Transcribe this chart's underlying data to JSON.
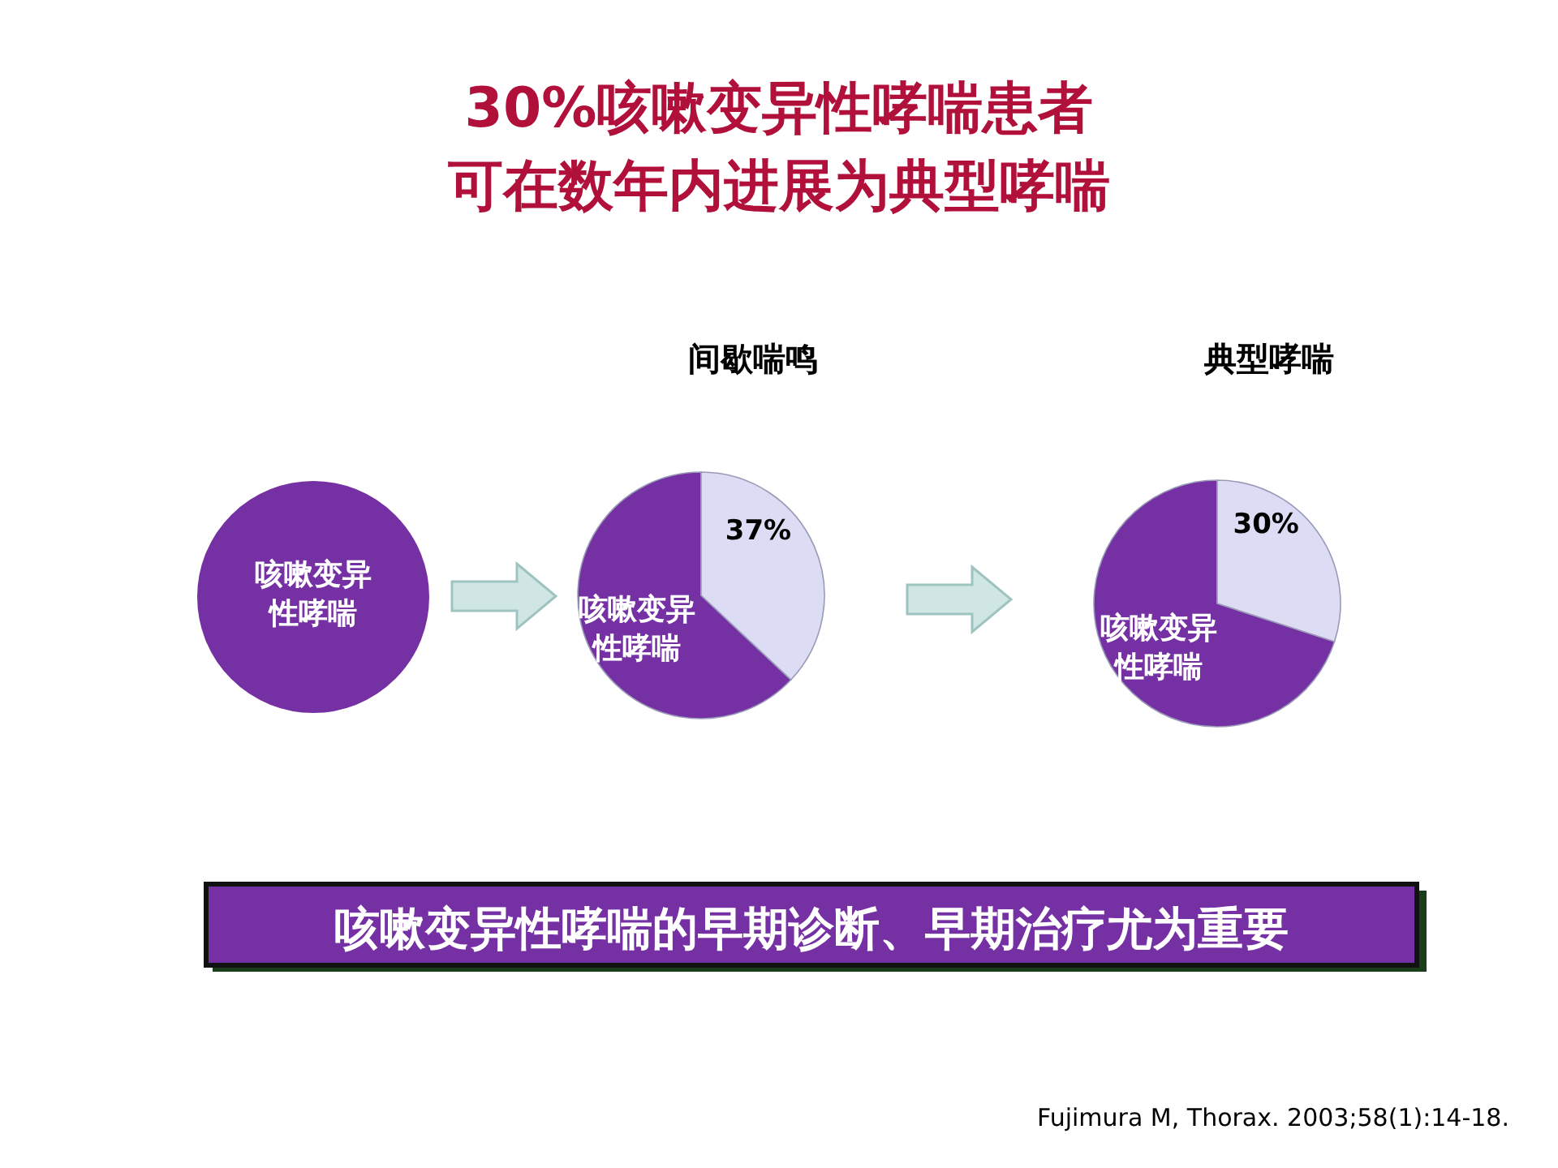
{
  "chart_data": [
    {
      "type": "other",
      "title": "30%咳嗽变异性哮喘患者可在数年内进展为典型哮喘",
      "annotations": [
        "咳嗽变异性哮喘的早期诊断、早期治疗尤为重要",
        "Fujimura M, Thorax. 2003;58(1):14-18."
      ]
    },
    {
      "type": "pie",
      "categories": [
        "咳嗽变异性哮喘"
      ],
      "values": [
        100
      ],
      "colors": [
        "#7530a3"
      ]
    },
    {
      "type": "pie",
      "title": "间歇喘鸣",
      "categories": [
        "咳嗽变异性哮喘",
        null
      ],
      "values": [
        63,
        37
      ],
      "colors": [
        "#7530a3",
        "#dcdcf4"
      ],
      "value_labels": [
        null,
        "37%"
      ]
    },
    {
      "type": "pie",
      "title": "典型哮喘",
      "categories": [
        "咳嗽变异性哮喘",
        null
      ],
      "values": [
        70,
        30
      ],
      "colors": [
        "#7530a3",
        "#dcdcf4"
      ],
      "value_labels": [
        null,
        "30%"
      ]
    }
  ]
}
